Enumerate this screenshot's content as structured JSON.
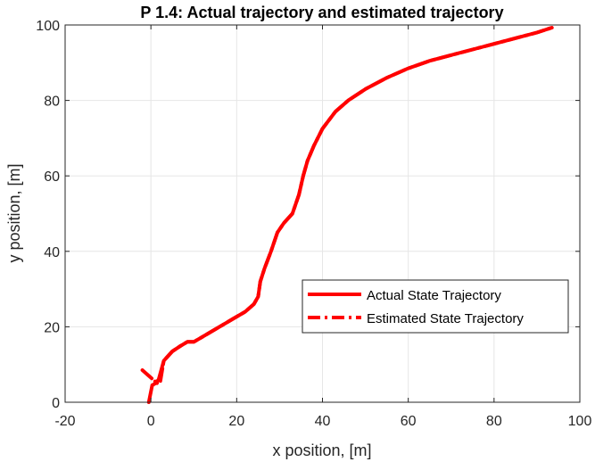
{
  "chart_data": {
    "type": "line",
    "title": "P 1.4: Actual trajectory and estimated trajectory",
    "xlabel": "x position, [m]",
    "ylabel": "y position, [m]",
    "xlim": [
      -20,
      100
    ],
    "ylim": [
      0,
      100
    ],
    "xticks": [
      "-20",
      "0",
      "20",
      "40",
      "60",
      "80",
      "100"
    ],
    "yticks": [
      "0",
      "20",
      "40",
      "60",
      "80",
      "100"
    ],
    "grid": true,
    "legend_position": "center-right",
    "series": [
      {
        "name": "Actual State Trajectory",
        "style": "solid",
        "color": "#ff0000",
        "x": [
          -0.5,
          0.3,
          1.0,
          1.8,
          3,
          5,
          7,
          8.5,
          10,
          13,
          16,
          19,
          22,
          24,
          25,
          25.5,
          26.5,
          28,
          29.5,
          31,
          33,
          34.5,
          35.5,
          36.5,
          38,
          40,
          43,
          46,
          50,
          55,
          60,
          65,
          70,
          75,
          80,
          85,
          90,
          93.5
        ],
        "y": [
          0,
          4.5,
          5.0,
          6.0,
          11,
          13.5,
          15,
          16,
          16,
          18,
          20,
          22,
          24,
          26,
          28,
          32,
          35.5,
          40,
          45,
          47.5,
          50,
          55,
          60,
          64,
          68,
          72.5,
          77,
          80,
          83,
          86,
          88.5,
          90.5,
          92,
          93.5,
          95,
          96.5,
          98,
          99.3
        ]
      },
      {
        "name": "Estimated State Trajectory",
        "style": "dashdot",
        "color": "#ff0000",
        "x": [
          -2,
          -1,
          0.5,
          1.5,
          2.2,
          3,
          5,
          7,
          8.5,
          10,
          13,
          16,
          19,
          22,
          24,
          25,
          25.5,
          26.5,
          28,
          29.5,
          31,
          33,
          34.5,
          35.5,
          36.5,
          38,
          40,
          43,
          46,
          50,
          55,
          60,
          65,
          70,
          75,
          80,
          85,
          90,
          93.5
        ],
        "y": [
          8.5,
          7.5,
          6,
          5,
          5.5,
          11,
          13.5,
          15,
          16,
          16,
          18,
          20,
          22,
          24,
          26,
          28,
          32,
          35.5,
          40,
          45,
          47.5,
          50,
          55,
          60,
          64,
          68,
          72.5,
          77,
          80,
          83,
          86,
          88.5,
          90.5,
          92,
          93.5,
          95,
          96.5,
          98,
          99.3
        ]
      }
    ]
  }
}
